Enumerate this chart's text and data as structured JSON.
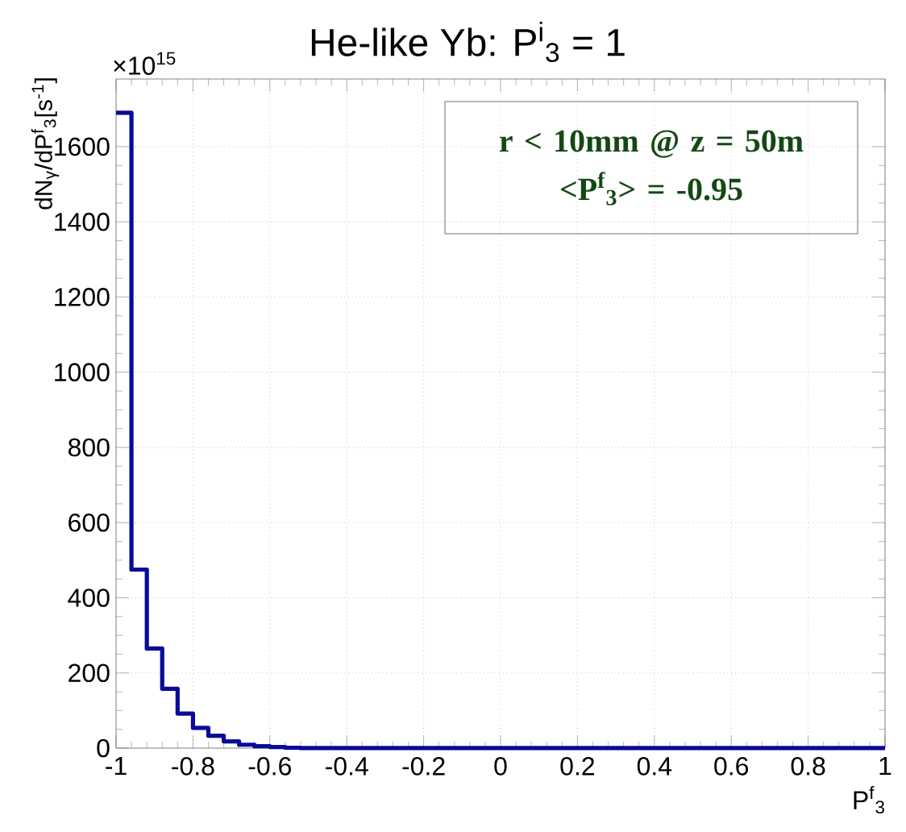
{
  "chart_data": {
    "type": "histogram",
    "title": "He-like Yb: P$^{i}$$_{3}$ = 1",
    "xlabel": "P$^{f}$$_{3}$",
    "ylabel": "dN$_{γ}$/dP$^{f}$$_{3}$[s$^{-1}$]",
    "annotations": [
      "×10$^{15}$",
      "r < 10mm @ z = 50m",
      "<P$^{f}$$_{3}$> = -0.95"
    ],
    "bins": [
      -1,
      -0.96,
      -0.92,
      -0.88,
      -0.84,
      -0.8,
      -0.76,
      -0.72,
      -0.68,
      -0.64,
      -0.6,
      -0.56,
      -0.52,
      -0.48,
      -0.44,
      -0.4,
      -0.36,
      -0.32,
      -0.28,
      -0.24,
      -0.2,
      -0.16,
      -0.12,
      -0.08,
      -0.04,
      0,
      0.04,
      0.08,
      0.12,
      0.16,
      0.2,
      0.24,
      0.28,
      0.32,
      0.36,
      0.4,
      0.44,
      0.48,
      0.52,
      0.56,
      0.6,
      0.64,
      0.68,
      0.72,
      0.76,
      0.8,
      0.84,
      0.88,
      0.92,
      0.96,
      1
    ],
    "values": [
      1690,
      475,
      265,
      158,
      92,
      54,
      33,
      18,
      9,
      5,
      3,
      1,
      0,
      0,
      0,
      0,
      0,
      0,
      0,
      0,
      0,
      0,
      0,
      0,
      0,
      0,
      0,
      0,
      0,
      0,
      0,
      0,
      0,
      0,
      0,
      0,
      0,
      0,
      0,
      0,
      0,
      0,
      0,
      0,
      0,
      0,
      0,
      0,
      0,
      0
    ],
    "color": "#0a0a9a",
    "xlim": [
      -1,
      1
    ],
    "ylim": [
      0,
      1780
    ],
    "xticks": [
      -1,
      -0.8,
      -0.6,
      -0.4,
      -0.2,
      0,
      0.2,
      0.4,
      0.6,
      0.8,
      1
    ],
    "yticks": [
      0,
      200,
      400,
      600,
      800,
      1000,
      1200,
      1400,
      1600
    ],
    "grid": true
  }
}
